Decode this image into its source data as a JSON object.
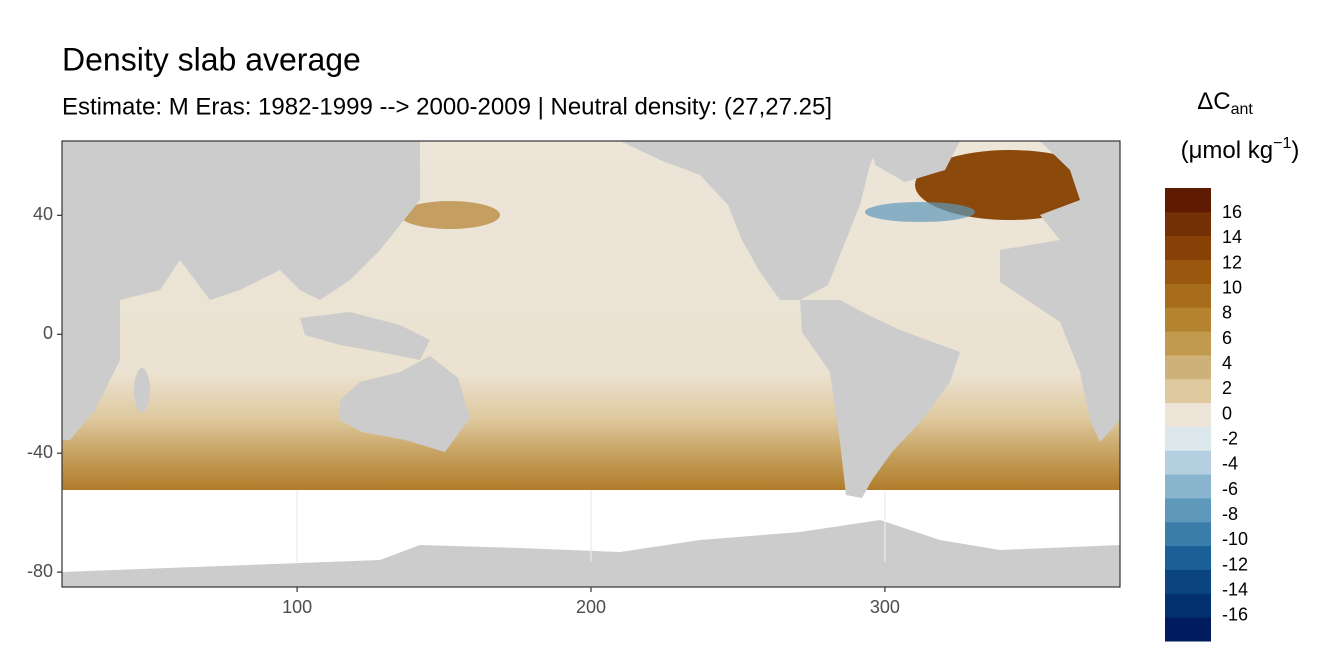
{
  "chart_data": {
    "type": "raster",
    "title": "Density slab average",
    "subtitle": "Estimate: M Eras: 1982-1999 --> 2000-2009 | Neutral density: (27,27.25]",
    "xlim": [
      20,
      380
    ],
    "ylim": [
      -85,
      65
    ],
    "xticks": [
      100,
      200,
      300
    ],
    "yticks": [
      -80,
      -40,
      0,
      40
    ],
    "grid": true,
    "legend": {
      "title": {
        "symbol": "ΔC",
        "subscript": "ant",
        "unit": "(μmol kg",
        "superscript": "−1",
        "close": ")"
      },
      "limits": [
        -18,
        18
      ],
      "breaks": [
        -16,
        -14,
        -12,
        -10,
        -8,
        -6,
        -4,
        -2,
        0,
        2,
        4,
        6,
        8,
        10,
        12,
        14,
        16
      ],
      "colors": [
        "#011c5e",
        "#03306f",
        "#0a4580",
        "#1a5f95",
        "#3a7dab",
        "#5e98bb",
        "#89b4cd",
        "#b4d0e0",
        "#dce7ec",
        "#ece5d8",
        "#dfcaa0",
        "#cdb178",
        "#c19a4f",
        "#b5822f",
        "#a86d1c",
        "#9a570e",
        "#874107",
        "#743005",
        "#5e1b02"
      ]
    }
  }
}
